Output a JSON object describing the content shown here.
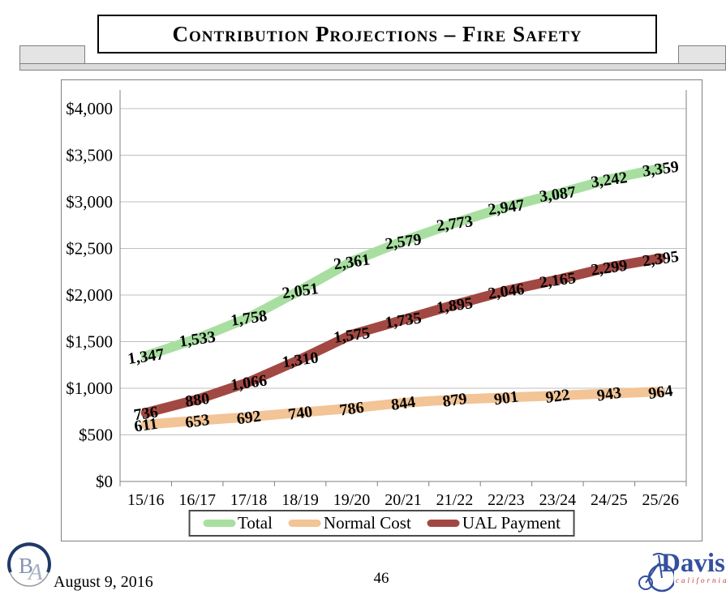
{
  "slide": {
    "title": "Contribution Projections – Fire Safety",
    "date": "August 9, 2016",
    "page_number": "46"
  },
  "logos": {
    "ba": {
      "letter_b": "B",
      "letter_a": "A"
    },
    "davis": {
      "name": "Davis",
      "subtitle": "california"
    }
  },
  "chart_data": {
    "type": "line",
    "title": "",
    "categories": [
      "15/16",
      "16/17",
      "17/18",
      "18/19",
      "19/20",
      "20/21",
      "21/22",
      "22/23",
      "23/24",
      "24/25",
      "25/26"
    ],
    "series": [
      {
        "name": "Total",
        "color": "#a8dfa1",
        "values": [
          1347,
          1533,
          1758,
          2051,
          2361,
          2579,
          2773,
          2947,
          3087,
          3242,
          3359
        ]
      },
      {
        "name": "Normal Cost",
        "color": "#f2c496",
        "values": [
          611,
          653,
          692,
          740,
          786,
          844,
          879,
          901,
          922,
          943,
          964
        ]
      },
      {
        "name": "UAL Payment",
        "color": "#a24842",
        "values": [
          736,
          880,
          1066,
          1310,
          1575,
          1735,
          1895,
          2046,
          2165,
          2299,
          2395
        ]
      }
    ],
    "y_axis": {
      "min": 0,
      "max": 4000,
      "step": 500
    },
    "y_tick_labels": [
      "$0",
      "$500",
      "$1,000",
      "$1,500",
      "$2,000",
      "$2,500",
      "$3,000",
      "$3,500",
      "$4,000"
    ],
    "legend_position": "bottom",
    "grid": true,
    "colors": {
      "axis": "#808080",
      "gridline": "#bfbfbf",
      "label_text": "#000000"
    }
  }
}
